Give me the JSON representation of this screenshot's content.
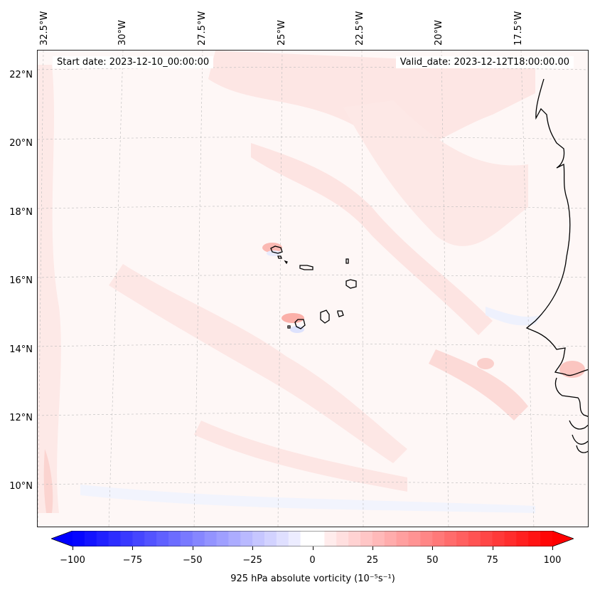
{
  "map": {
    "start_date": "Start date: 2023-12-10_00:00:00",
    "valid_date": "Valid_date: 2023-12-12T18:00:00.00",
    "lon_labels": [
      "32.5°W",
      "30°W",
      "27.5°W",
      "25°W",
      "22.5°W",
      "20°W",
      "17.5°W"
    ],
    "lat_labels": [
      "22°N",
      "20°N",
      "18°N",
      "16°N",
      "14°N",
      "12°N",
      "10°N"
    ],
    "coastline_color": "#000000",
    "gridline_color": "#bbbbbb"
  },
  "colorbar": {
    "title": "925 hPa absolute vorticity (10⁻⁵s⁻¹)",
    "ticks": [
      "−100",
      "−75",
      "−50",
      "−25",
      "0",
      "25",
      "50",
      "75",
      "100"
    ],
    "range": [
      -100,
      100
    ],
    "negative_color": "#0000ff",
    "positive_color": "#ff0000"
  }
}
